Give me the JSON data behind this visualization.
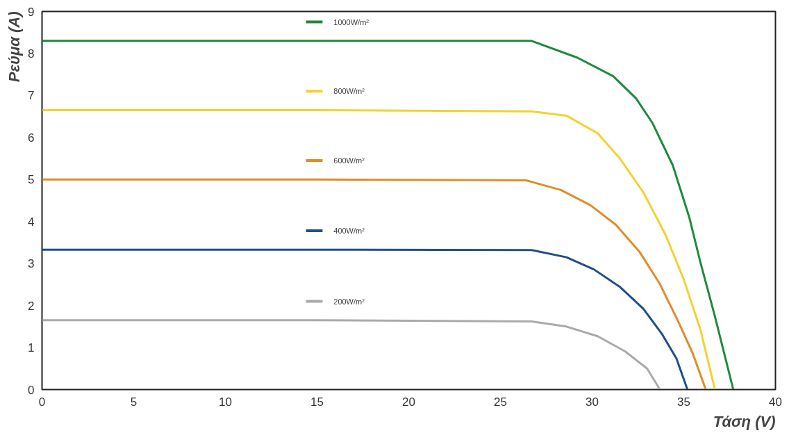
{
  "chart_data": {
    "type": "line",
    "xlabel": "Τάση (V)",
    "ylabel": "Ρεύμα (A)",
    "xlim": [
      0,
      40
    ],
    "xticks": [
      0,
      5,
      10,
      15,
      20,
      25,
      30,
      35,
      40
    ],
    "ylim": [
      0,
      9
    ],
    "yticks": [
      0,
      1,
      2,
      3,
      4,
      5,
      6,
      7,
      8,
      9
    ],
    "line_style": "solid",
    "grid": false,
    "legend": "top",
    "series": [
      {
        "name": "1000W/m²",
        "color": "#1e8a3c",
        "x": [
          0,
          15,
          26.7,
          29.2,
          31.15,
          32.4,
          33.3,
          34.4,
          35.3,
          35.9,
          36.7,
          37.7
        ],
        "values": [
          8.3,
          8.3,
          8.3,
          7.9,
          7.46,
          6.93,
          6.34,
          5.34,
          4.1,
          3.04,
          1.74,
          0
        ]
      },
      {
        "name": "800W/m²",
        "color": "#f2d230",
        "x": [
          0,
          15,
          26.7,
          28.6,
          30.3,
          31.5,
          32.8,
          34.0,
          35.0,
          35.9,
          36.7
        ],
        "values": [
          6.65,
          6.65,
          6.62,
          6.52,
          6.1,
          5.51,
          4.69,
          3.69,
          2.62,
          1.44,
          0
        ]
      },
      {
        "name": "600W/m²",
        "color": "#e08c2a",
        "x": [
          0,
          15,
          26.4,
          28.3,
          29.9,
          31.3,
          32.6,
          33.7,
          34.7,
          35.5,
          36.2
        ],
        "values": [
          5.0,
          5.0,
          4.98,
          4.75,
          4.39,
          3.92,
          3.27,
          2.51,
          1.62,
          0.85,
          0
        ]
      },
      {
        "name": "400W/m²",
        "color": "#1f4e8c",
        "x": [
          0,
          15,
          26.7,
          28.6,
          30.1,
          31.5,
          32.8,
          33.8,
          34.6,
          35.2
        ],
        "values": [
          3.33,
          3.33,
          3.32,
          3.15,
          2.86,
          2.45,
          1.92,
          1.33,
          0.74,
          0
        ]
      },
      {
        "name": "200W/m²",
        "color": "#aaaaaa",
        "x": [
          0,
          15,
          26.7,
          28.6,
          30.3,
          31.8,
          33.0,
          33.7
        ],
        "values": [
          1.65,
          1.65,
          1.62,
          1.5,
          1.27,
          0.91,
          0.5,
          0
        ]
      }
    ]
  }
}
